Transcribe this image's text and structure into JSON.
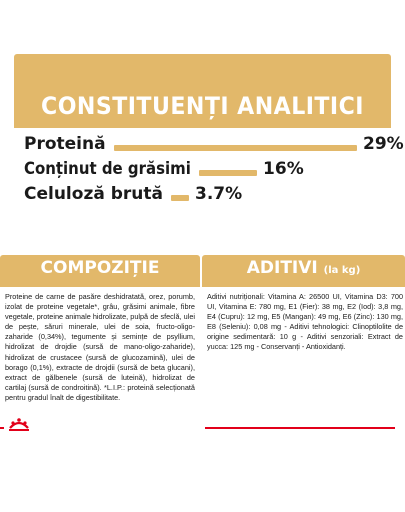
{
  "analytic": {
    "title": "CONSTITUENȚI ANALITICI",
    "rows": [
      {
        "label": "Proteină",
        "value": "29%",
        "fraction": 0.29
      },
      {
        "label": "Conținut de grăsimi",
        "value": "16%",
        "fraction": 0.16
      },
      {
        "label": "Celuloză brută",
        "value": "3.7%",
        "fraction": 0.037
      }
    ]
  },
  "composition": {
    "title": "COMPOZIȚIE",
    "text": "Proteine de carne de pasăre deshidratată, orez, porumb, izolat de proteine vegetale*, grâu, grăsimi animale, fibre vegetale, proteine animale hidrolizate, pulpă de sfeclă, ulei de pește, săruri minerale, ulei de soia, fructo-oligo-zaharide (0,34%), tegumente și semințe de psyllium, hidrolizat de drojdie (sursă de mano-oligo-zaharide), hidrolizat de crustacee (sursă de glucozamină), ulei de borago (0,1%), extracte de drojdii (sursă de beta glucani), extract de gălbenele (sursă de luteină), hidrolizat de cartilaj (sursă de condroitină). *L.I.P.: proteină selecționată pentru gradul înalt de digestibilitate."
  },
  "additives": {
    "title": "ADITIVI",
    "title_suffix": "(la kg)",
    "text": "Aditivi nutriționali: Vitamina A: 26500 UI, Vitamina D3: 700 UI, Vitamina E: 780 mg, E1 (Fier): 38 mg, E2 (Iod): 3,8 mg, E4 (Cupru): 12 mg, E5 (Mangan): 49 mg, E6 (Zinc): 130 mg, E8 (Seleniu): 0,08 mg - Aditivi tehnologici: Clinoptilolite de origine sedimentară: 10 g - Aditivi senzoriali: Extract de yucca: 125 mg - Conservanți - Antioxidanți."
  },
  "brand": {
    "logo_icon": "royal-canin-crown-icon"
  },
  "colors": {
    "accent": "#e2b86a",
    "brand_red": "#e2001a",
    "text": "#1a1a1a"
  }
}
